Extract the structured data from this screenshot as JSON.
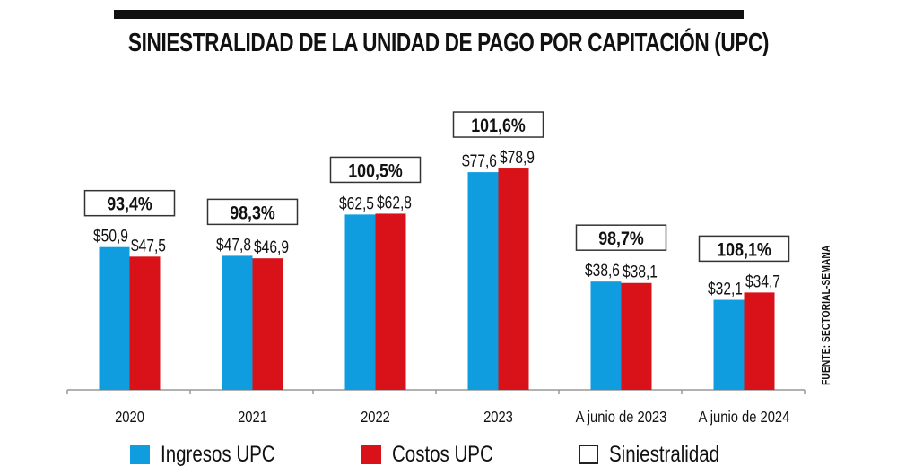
{
  "title": "SINIESTRALIDAD DE LA UNIDAD DE PAGO POR CAPITACIÓN (UPC)",
  "source": "FUENTE: SECTORIAL-SEMANA",
  "colors": {
    "ingresos": "#0f9de0",
    "costos": "#d81218",
    "box": "#333333"
  },
  "chart_data": {
    "type": "bar",
    "title": "SINIESTRALIDAD DE LA UNIDAD DE PAGO POR CAPITACIÓN (UPC)",
    "categories": [
      "2020",
      "2021",
      "2022",
      "2023",
      "A junio de 2023",
      "A junio de 2024"
    ],
    "series": [
      {
        "name": "Ingresos UPC",
        "values": [
          50.9,
          47.8,
          62.5,
          77.6,
          38.6,
          32.1
        ],
        "labels": [
          "$50,9",
          "$47,8",
          "$62,5",
          "$77,6",
          "$38,6",
          "$32,1"
        ]
      },
      {
        "name": "Costos UPC",
        "values": [
          47.5,
          46.9,
          62.8,
          78.9,
          38.1,
          34.7
        ],
        "labels": [
          "$47,5",
          "$46,9",
          "$62,8",
          "$78,9",
          "$38,1",
          "$34,7"
        ]
      }
    ],
    "siniestralidad": {
      "name": "Siniestralidad",
      "values": [
        93.4,
        98.3,
        100.5,
        101.6,
        98.7,
        108.1
      ],
      "labels": [
        "93,4%",
        "98,3%",
        "100,5%",
        "101,6%",
        "98,7%",
        "108,1%"
      ]
    },
    "ylim": [
      0,
      80
    ],
    "grid": false,
    "legend": "bottom"
  },
  "legend": [
    {
      "label": "Ingresos UPC"
    },
    {
      "label": "Costos UPC"
    },
    {
      "label": "Siniestralidad"
    }
  ]
}
